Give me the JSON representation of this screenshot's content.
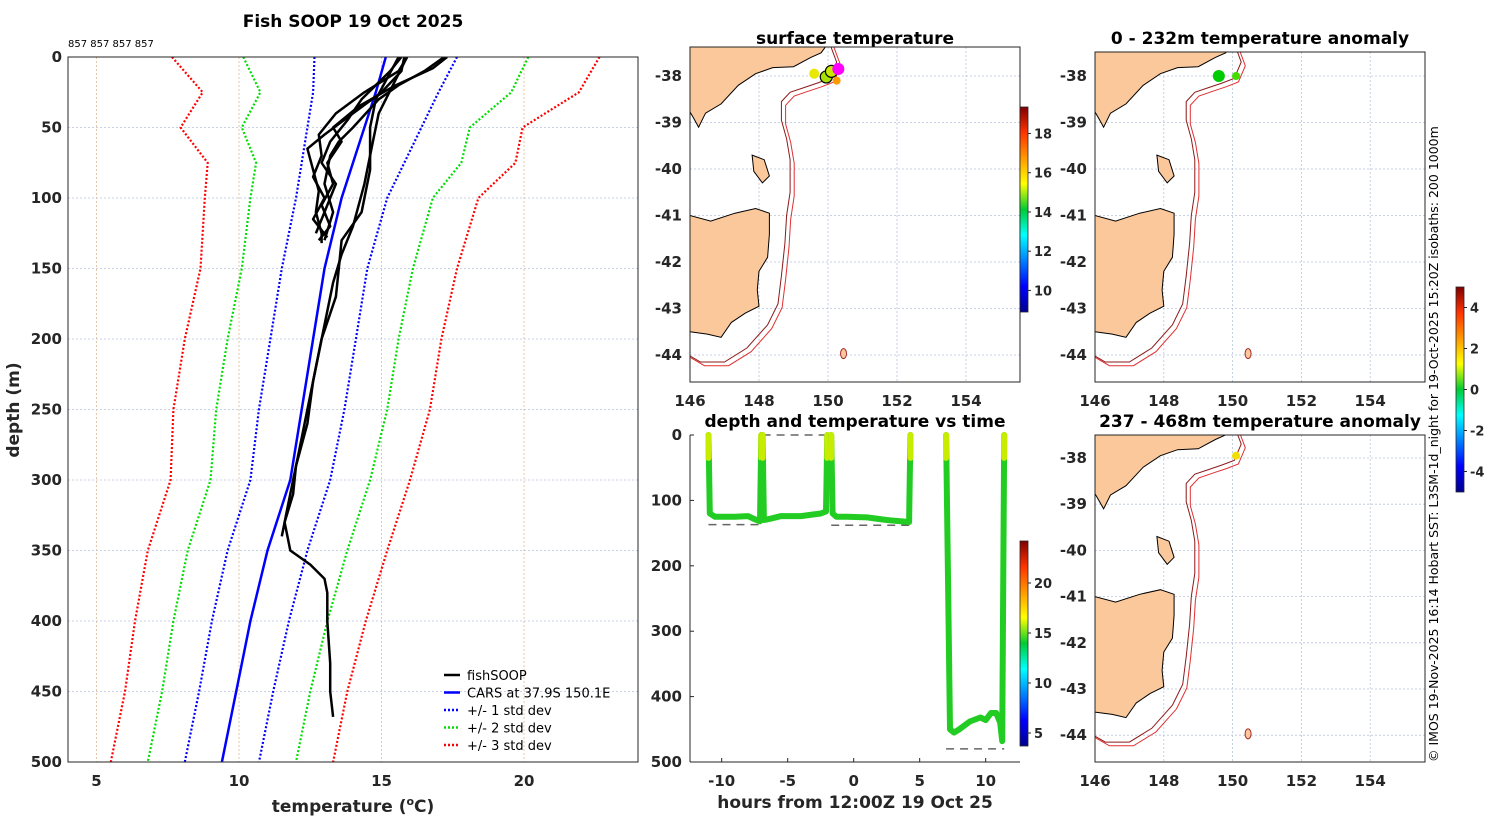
{
  "chart_data": [
    {
      "type": "line",
      "title": "Fish SOOP 19 Oct 2025",
      "top_annotation": "857 857 857 857",
      "xlabel": "temperature (oC)",
      "xlabel_main": "temperature (",
      "xlabel_sup": "o",
      "xlabel_end": "C)",
      "ylabel": "depth (m)",
      "xlim": [
        4,
        24
      ],
      "ylim": [
        500,
        0
      ],
      "xticks": [
        5,
        10,
        15,
        20
      ],
      "yticks": [
        0,
        50,
        100,
        150,
        200,
        250,
        300,
        350,
        400,
        450,
        500
      ],
      "grid": true,
      "legend_position": "bottom-right",
      "legend": [
        "fishSOOP",
        "CARS at 37.9S 150.1E",
        "+/- 1 std dev",
        "+/- 2 std dev",
        "+/- 3 std dev"
      ],
      "colors": {
        "fishSOOP": "#000000",
        "cars": "#0000ff",
        "std1": "#0000ff",
        "std2": "#00dd00",
        "std3": "#ff0000"
      },
      "cars_depth": [
        0,
        25,
        50,
        75,
        100,
        150,
        200,
        250,
        300,
        350,
        400,
        450,
        500
      ],
      "cars_mean": [
        15.15,
        14.8,
        14.4,
        14.0,
        13.6,
        13.0,
        12.6,
        12.2,
        11.8,
        11.0,
        10.4,
        9.9,
        9.4
      ],
      "cars_std": [
        2.5,
        2.2,
        2.0,
        1.8,
        1.6,
        1.5,
        1.5,
        1.5,
        1.4,
        1.4,
        1.35,
        1.3,
        1.3
      ],
      "fishsoop_profiles": [
        {
          "depth": [
            0,
            10,
            25,
            40,
            55,
            65,
            80,
            95,
            110,
            125,
            132
          ],
          "temp": [
            15.8,
            15.7,
            15.0,
            14.0,
            13.0,
            12.4,
            12.6,
            12.8,
            12.7,
            12.9,
            12.9
          ]
        },
        {
          "depth": [
            0,
            10,
            25,
            40,
            55,
            70,
            85,
            100,
            115,
            128
          ],
          "temp": [
            15.9,
            15.6,
            14.4,
            13.4,
            12.8,
            12.9,
            12.6,
            13.0,
            12.6,
            13.1
          ]
        },
        {
          "depth": [
            0,
            8,
            20,
            35,
            50,
            60,
            75,
            90,
            105,
            120,
            130
          ],
          "temp": [
            17.3,
            16.8,
            15.5,
            14.2,
            13.3,
            13.6,
            13.1,
            13.3,
            12.9,
            13.2,
            12.8
          ]
        },
        {
          "depth": [
            0,
            10,
            20,
            30,
            45,
            60,
            75,
            90,
            110,
            125
          ],
          "temp": [
            15.7,
            15.3,
            14.8,
            14.3,
            13.8,
            13.2,
            12.9,
            13.4,
            13.0,
            12.7
          ]
        },
        {
          "depth": [
            0,
            10,
            20,
            30,
            50,
            60,
            70,
            90,
            110,
            130
          ],
          "temp": [
            17.2,
            16.5,
            15.6,
            14.9,
            14.0,
            13.5,
            13.2,
            13.0,
            13.3,
            13.0
          ]
        },
        {
          "depth": [
            0,
            15,
            30,
            50,
            80,
            110,
            130,
            150,
            170,
            200,
            230,
            260,
            290,
            310,
            330,
            350,
            360,
            370,
            380,
            400,
            430,
            450,
            468
          ],
          "temp": [
            15.6,
            15.2,
            14.8,
            14.6,
            14.6,
            14.3,
            13.6,
            13.5,
            13.4,
            12.9,
            12.6,
            12.4,
            12.0,
            11.9,
            11.6,
            11.8,
            12.5,
            13.0,
            13.1,
            13.1,
            13.2,
            13.2,
            13.3
          ]
        },
        {
          "depth": [
            0,
            20,
            40,
            60,
            90,
            120,
            140,
            160,
            190,
            220,
            250,
            280,
            300,
            320,
            340
          ],
          "temp": [
            15.9,
            15.4,
            14.9,
            14.7,
            14.4,
            14.0,
            13.6,
            13.3,
            13.0,
            12.7,
            12.4,
            12.1,
            11.9,
            11.7,
            11.5
          ]
        }
      ]
    },
    {
      "type": "scatter",
      "title": "surface temperature",
      "xticks": [
        146,
        148,
        150,
        152,
        154
      ],
      "yticks": [
        -38,
        -39,
        -40,
        -41,
        -42,
        -43,
        -44
      ],
      "colorbar_ticks": [
        10,
        12,
        14,
        16,
        18
      ],
      "colorbar_range": [
        8.9,
        19.35
      ],
      "points": [
        {
          "lon": 149.6,
          "lat": -37.95,
          "color": "#e8e800",
          "outlined": false,
          "size": 5
        },
        {
          "lon": 149.95,
          "lat": -38.02,
          "color": "#a8e000",
          "outlined": true,
          "size": 6
        },
        {
          "lon": 150.1,
          "lat": -37.9,
          "color": "#c8e800",
          "outlined": true,
          "size": 6
        },
        {
          "lon": 150.3,
          "lat": -37.85,
          "color": "#ff00ff",
          "outlined": false,
          "size": 6
        },
        {
          "lon": 150.25,
          "lat": -38.1,
          "color": "#ff9900",
          "outlined": false,
          "size": 4
        }
      ]
    },
    {
      "type": "scatter",
      "title": "0 - 232m temperature anomaly",
      "xticks": [
        146,
        148,
        150,
        152,
        154
      ],
      "yticks": [
        -38,
        -39,
        -40,
        -41,
        -42,
        -43,
        -44
      ],
      "colorbar_ticks": [
        -4,
        -2,
        0,
        2,
        4
      ],
      "colorbar_range": [
        -5,
        5
      ],
      "points": [
        {
          "lon": 149.6,
          "lat": -38.0,
          "color": "#00cc00",
          "outlined": false,
          "size": 6
        },
        {
          "lon": 150.1,
          "lat": -38.0,
          "color": "#44dd00",
          "outlined": false,
          "size": 4
        }
      ]
    },
    {
      "type": "line",
      "title": "depth and temperature vs time",
      "xlabel": "hours from 12:00Z 19 Oct 25",
      "xlim": [
        -12.4,
        12.6
      ],
      "ylim": [
        500,
        0
      ],
      "xticks": [
        -10,
        -5,
        0,
        5,
        10
      ],
      "yticks": [
        0,
        100,
        200,
        300,
        400,
        500
      ],
      "colorbar_ticks": [
        5,
        10,
        15,
        20
      ],
      "colorbar_range": [
        3.7,
        24.2
      ],
      "tracks": [
        {
          "t": [
            -11.0,
            -10.9,
            -10.5,
            -9.0,
            -8.0,
            -7.6,
            -7.1,
            -7.0
          ],
          "d": [
            0,
            120,
            125,
            125,
            124,
            128,
            132,
            0
          ]
        },
        {
          "t": [
            -6.9,
            -6.8,
            -6.3,
            -5.5,
            -4.0,
            -2.5,
            -2.1,
            -2.0
          ],
          "d": [
            0,
            130,
            128,
            124,
            124,
            120,
            117,
            0
          ]
        },
        {
          "t": [
            -1.7,
            -1.6,
            -1.3,
            -0.5,
            1.0,
            2.5,
            4.2,
            4.3
          ],
          "d": [
            0,
            120,
            125,
            125,
            126,
            130,
            133,
            0
          ]
        },
        {
          "t": [
            7.0,
            7.3,
            7.6,
            8.0,
            8.8,
            9.6,
            10.0,
            10.4,
            10.8,
            11.1,
            11.25,
            11.4
          ],
          "d": [
            0,
            450,
            455,
            450,
            438,
            432,
            436,
            425,
            425,
            440,
            468,
            0
          ]
        }
      ],
      "bottom_markers": [
        {
          "t": [
            -11.0,
            -7.0
          ],
          "d": 137
        },
        {
          "t": [
            -6.9,
            -2.0
          ],
          "d": 0
        },
        {
          "t": [
            -1.7,
            4.3
          ],
          "d": 138
        },
        {
          "t": [
            7.0,
            11.4
          ],
          "d": 480
        }
      ]
    },
    {
      "type": "scatter",
      "title": "237 - 468m temperature anomaly",
      "xticks": [
        146,
        148,
        150,
        152,
        154
      ],
      "yticks": [
        -38,
        -39,
        -40,
        -41,
        -42,
        -43,
        -44
      ],
      "points": [
        {
          "lon": 150.1,
          "lat": -37.95,
          "color": "#f0e000",
          "outlined": false,
          "size": 4
        }
      ]
    }
  ],
  "credit": "© IMOS 19-Nov-2025 16:14 Hobart SST: L3SM-1d_night for 19-Oct-2025 15:20Z isobaths: 200  1000m"
}
